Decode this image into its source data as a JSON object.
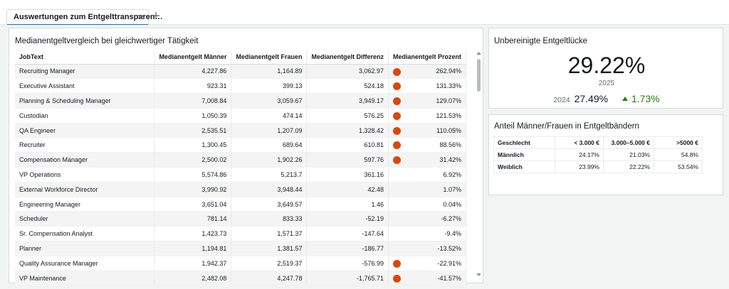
{
  "tabs": [
    {
      "label": "Auswertungen zum Entgelttransparen…",
      "active": true
    }
  ],
  "table_visual": {
    "title": "Medianentgeltvergleich bei gleichwertiger Tätigkeit",
    "columns": [
      "JobText",
      "Medianentgelt Männer",
      "Medianentgelt Frauen",
      "Medianentgelt Differenz",
      "Medianentgelt Prozent"
    ],
    "rows": [
      {
        "job": "Recruiting Manager",
        "men": "4,227.86",
        "women": "1,164.89",
        "diff": "3,062.97",
        "pct": "262.94%",
        "flag": true
      },
      {
        "job": "Executive Assistant",
        "men": "923.31",
        "women": "399.13",
        "diff": "524.18",
        "pct": "131.33%",
        "flag": true
      },
      {
        "job": "Planning & Scheduling Manager",
        "men": "7,008.84",
        "women": "3,059.67",
        "diff": "3,949.17",
        "pct": "129.07%",
        "flag": true
      },
      {
        "job": "Custodian",
        "men": "1,050.39",
        "women": "474.14",
        "diff": "576.25",
        "pct": "121.53%",
        "flag": true
      },
      {
        "job": "QA Engineer",
        "men": "2,535.51",
        "women": "1,207.09",
        "diff": "1,328.42",
        "pct": "110.05%",
        "flag": true
      },
      {
        "job": "Recruiter",
        "men": "1,300.45",
        "women": "689.64",
        "diff": "610.81",
        "pct": "88.56%",
        "flag": true
      },
      {
        "job": "Compensation Manager",
        "men": "2,500.02",
        "women": "1,902.26",
        "diff": "597.76",
        "pct": "31.42%",
        "flag": true
      },
      {
        "job": "VP Operations",
        "men": "5,574.86",
        "women": "5,213.7",
        "diff": "361.16",
        "pct": "6.92%",
        "flag": false
      },
      {
        "job": "External Workforce Director",
        "men": "3,990.92",
        "women": "3,948.44",
        "diff": "42.48",
        "pct": "1.07%",
        "flag": false
      },
      {
        "job": "Engineering Manager",
        "men": "3,651.04",
        "women": "3,649.57",
        "diff": "1.46",
        "pct": "0.04%",
        "flag": false
      },
      {
        "job": "Scheduler",
        "men": "781.14",
        "women": "833.33",
        "diff": "-52.19",
        "pct": "-6.27%",
        "flag": false
      },
      {
        "job": "Sr. Compensation Analyst",
        "men": "1,423.73",
        "women": "1,571.37",
        "diff": "-147.64",
        "pct": "-9.4%",
        "flag": false
      },
      {
        "job": "Planner",
        "men": "1,194.81",
        "women": "1,381.57",
        "diff": "-186.77",
        "pct": "-13.52%",
        "flag": false
      },
      {
        "job": "Quality Assurance Manager",
        "men": "1,942.37",
        "women": "2,519.37",
        "diff": "-576.99",
        "pct": "-22.91%",
        "flag": true
      },
      {
        "job": "VP Maintenance",
        "men": "2,482.08",
        "women": "4,247.78",
        "diff": "-1,765.71",
        "pct": "-41.57%",
        "flag": true
      }
    ],
    "flag_color": "#d9480f"
  },
  "kpi": {
    "title": "Unbereinigte Entgeltlücke",
    "value": "29.22%",
    "year": "2025",
    "compare_year": "2024",
    "compare_value": "27.49%",
    "delta": "1.73%",
    "delta_direction": "up",
    "delta_color": "#1d8102"
  },
  "band_visual": {
    "title": "Anteil Männer/Frauen in Entgeltbändern",
    "columns": [
      "Geschlecht",
      "< 3.000 €",
      "3.000–5.000 €",
      ">5000 €"
    ],
    "rows": [
      {
        "label": "Männlich",
        "values": [
          "24.17%",
          "21.03%",
          "54.8%"
        ]
      },
      {
        "label": "Weiblich",
        "values": [
          "23.99%",
          "22.22%",
          "53.54%"
        ]
      }
    ]
  }
}
